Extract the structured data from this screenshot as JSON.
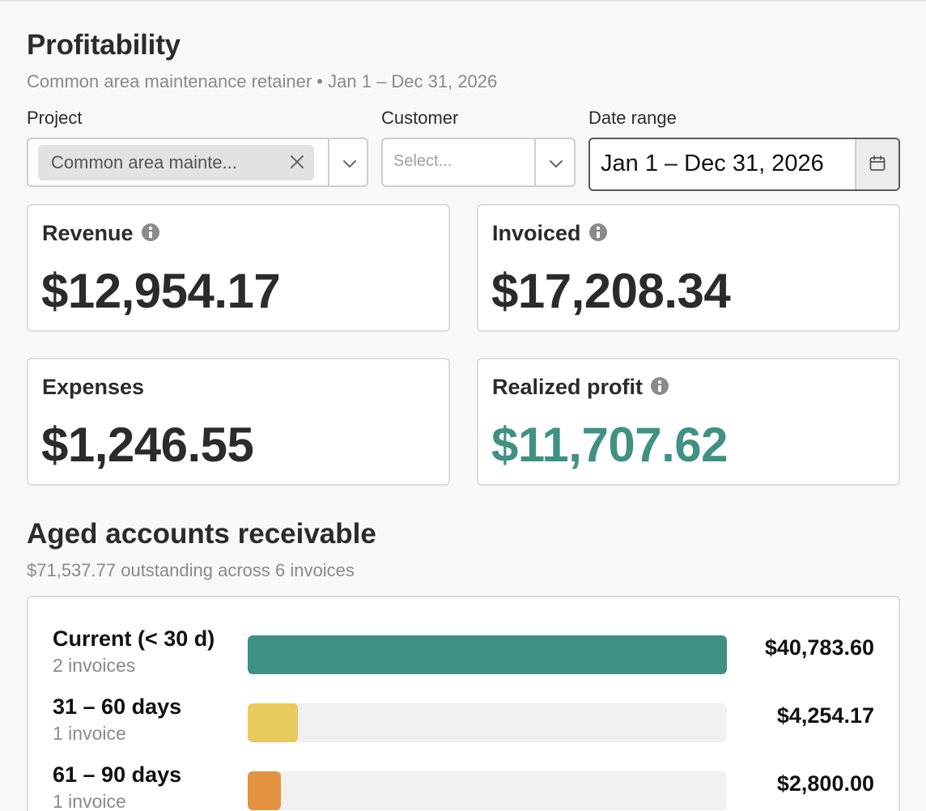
{
  "header": {
    "title": "Profitability",
    "subtitle": "Common area maintenance retainer • Jan 1 – Dec 31, 2026"
  },
  "filters": {
    "project": {
      "label": "Project",
      "selected": "Common area mainte..."
    },
    "customer": {
      "label": "Customer",
      "placeholder": "Select..."
    },
    "date_range": {
      "label": "Date range",
      "value": "Jan 1 – Dec 31, 2026"
    }
  },
  "metrics": {
    "revenue": {
      "label": "Revenue",
      "value": "$12,954.17"
    },
    "invoiced": {
      "label": "Invoiced",
      "value": "$17,208.34"
    },
    "expenses": {
      "label": "Expenses",
      "value": "$1,246.55"
    },
    "realized_profit": {
      "label": "Realized profit",
      "value": "$11,707.62",
      "color": "#3f9183"
    }
  },
  "aged_ar": {
    "title": "Aged accounts receivable",
    "summary": "$71,537.77 outstanding across 6 invoices",
    "buckets": [
      {
        "name": "Current (< 30 d)",
        "count": "2 invoices",
        "amount": "$40,783.60",
        "fraction": 1.0,
        "color": "#3f9183"
      },
      {
        "name": "31 – 60 days",
        "count": "1 invoice",
        "amount": "$4,254.17",
        "fraction": 0.104,
        "color": "#e8c95b"
      },
      {
        "name": "61 – 90 days",
        "count": "1 invoice",
        "amount": "$2,800.00",
        "fraction": 0.069,
        "color": "#e39340"
      }
    ]
  }
}
